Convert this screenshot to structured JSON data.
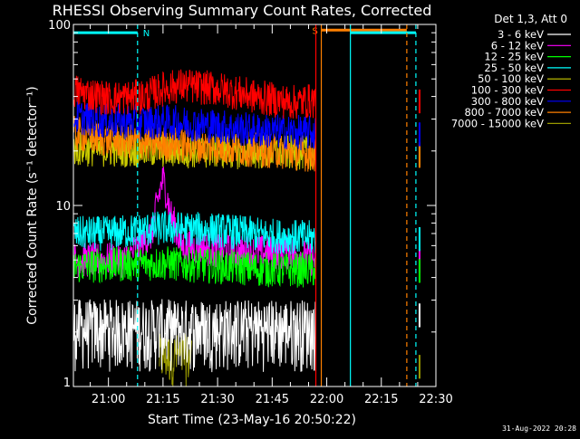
{
  "chart_data": {
    "type": "line",
    "title": "RHESSI Observing Summary Count Rates, Corrected",
    "xlabel": "Start Time (23-May-16 20:50:22)",
    "ylabel": "Corrected Count Rate (s⁻¹ detector⁻¹)",
    "ylog": true,
    "ylim": [
      1,
      100
    ],
    "yticks": [
      {
        "v": 1,
        "label": "1"
      },
      {
        "v": 10,
        "label": "10"
      },
      {
        "v": 100,
        "label": "100"
      }
    ],
    "xlim": [
      50.37,
      150
    ],
    "xticks": [
      {
        "v": 60,
        "label": "21:00"
      },
      {
        "v": 75,
        "label": "21:15"
      },
      {
        "v": 90,
        "label": "21:30"
      },
      {
        "v": 105,
        "label": "21:45"
      },
      {
        "v": 120,
        "label": "22:00"
      },
      {
        "v": 135,
        "label": "22:15"
      },
      {
        "v": 150,
        "label": "22:30"
      }
    ],
    "legend_title": "Det 1,3, Att 0",
    "legend_position": "right",
    "series": [
      {
        "name": "3 - 6 keV",
        "color": "#ffffff",
        "band": [
          1.2,
          3.5
        ],
        "x": [
          50.5,
          117.0
        ],
        "profile": [
          [
            50.5,
            1.6
          ],
          [
            65,
            1.5
          ],
          [
            70,
            1.8
          ],
          [
            75,
            2.2
          ],
          [
            80,
            2.6
          ],
          [
            85,
            2.0
          ],
          [
            95,
            2.0
          ],
          [
            100,
            2.5
          ],
          [
            105,
            2.3
          ],
          [
            112,
            2.6
          ],
          [
            117,
            2.5
          ]
        ]
      },
      {
        "name": "6 - 12 keV",
        "color": "#ff00ff",
        "band": [
          3.5,
          9.0
        ],
        "x": [
          50.5,
          117.0
        ],
        "profile": [
          [
            50.5,
            5.0
          ],
          [
            65,
            5.0
          ],
          [
            72,
            7.0
          ],
          [
            75,
            14
          ],
          [
            77,
            9
          ],
          [
            80,
            6
          ],
          [
            95,
            5.5
          ],
          [
            110,
            5.5
          ],
          [
            117,
            5.0
          ]
        ]
      },
      {
        "name": "12 - 25 keV",
        "color": "#00ff00",
        "band": [
          3.4,
          6.0
        ],
        "x": [
          50.5,
          117.0
        ],
        "profile": [
          [
            50.5,
            4.6
          ],
          [
            60,
            4.7
          ],
          [
            75,
            4.8
          ],
          [
            90,
            4.6
          ],
          [
            105,
            4.4
          ],
          [
            117,
            4.4
          ]
        ]
      },
      {
        "name": "25 - 50 keV",
        "color": "#00ffff",
        "band": [
          5.8,
          9.0
        ],
        "x": [
          50.5,
          117.0
        ],
        "profile": [
          [
            50.5,
            7.0
          ],
          [
            60,
            7.0
          ],
          [
            75,
            7.5
          ],
          [
            90,
            7.3
          ],
          [
            105,
            6.8
          ],
          [
            117,
            6.6
          ]
        ]
      },
      {
        "name": "50 - 100 keV",
        "color": "#cccc00",
        "band": [
          17,
          23
        ],
        "x": [
          50.5,
          117.0
        ],
        "profile": [
          [
            50.5,
            20.5
          ],
          [
            117,
            19.5
          ]
        ]
      },
      {
        "name": "100 - 300 keV",
        "color": "#ff0000",
        "band": [
          35,
          52
        ],
        "x": [
          50.5,
          117.0
        ],
        "profile": [
          [
            50.5,
            43
          ],
          [
            60,
            39
          ],
          [
            70,
            40
          ],
          [
            75,
            44
          ],
          [
            80,
            46
          ],
          [
            90,
            44
          ],
          [
            100,
            40
          ],
          [
            110,
            37
          ],
          [
            117,
            38
          ]
        ]
      },
      {
        "name": "300 - 800 keV",
        "color": "#0000ff",
        "band": [
          23,
          37
        ],
        "x": [
          50.5,
          117.0
        ],
        "profile": [
          [
            50.5,
            31
          ],
          [
            60,
            29
          ],
          [
            75,
            29
          ],
          [
            85,
            28
          ],
          [
            100,
            26
          ],
          [
            117,
            25
          ]
        ]
      },
      {
        "name": "800 - 7000 keV",
        "color": "#ff8000",
        "band": [
          18,
          30
        ],
        "x": [
          50.5,
          117.0
        ],
        "profile": [
          [
            50.5,
            25
          ],
          [
            60,
            23
          ],
          [
            75,
            22
          ],
          [
            90,
            21
          ],
          [
            105,
            20
          ],
          [
            117,
            19
          ]
        ]
      },
      {
        "name": "7000 - 15000 keV",
        "color": "#999900",
        "band": [
          1.0,
          2.2
        ],
        "x": [
          74.0,
          83.0
        ],
        "profile": [
          [
            74,
            1.3
          ],
          [
            83,
            1.3
          ]
        ]
      }
    ],
    "annotations": [
      {
        "type": "bar",
        "color": "#00ffff",
        "x1": 50.5,
        "x2": 68.0,
        "y": 90,
        "label": "N"
      },
      {
        "type": "bar",
        "color": "#ff8000",
        "x1": 118.5,
        "x2": 142.0,
        "y": 93,
        "label": "S"
      },
      {
        "type": "bar",
        "color": "#00ffff",
        "x1": 126.5,
        "x2": 144.5,
        "y": 90,
        "label": ""
      },
      {
        "type": "vline",
        "color": "#00ffff",
        "x": 68.0,
        "dash": true
      },
      {
        "type": "vline",
        "color": "#ff8000",
        "x": 118.5,
        "dash": false
      },
      {
        "type": "vline",
        "color": "#00ffff",
        "x": 126.5,
        "dash": false
      },
      {
        "type": "vline",
        "color": "#ff8000",
        "x": 142.0,
        "dash": true
      },
      {
        "type": "vline",
        "color": "#00ffff",
        "x": 144.5,
        "dash": true
      },
      {
        "type": "vline",
        "color": "#ff0000",
        "x": 117.0,
        "dash": false
      }
    ]
  },
  "footer": {
    "date": "31-Aug-2022 20:28"
  }
}
